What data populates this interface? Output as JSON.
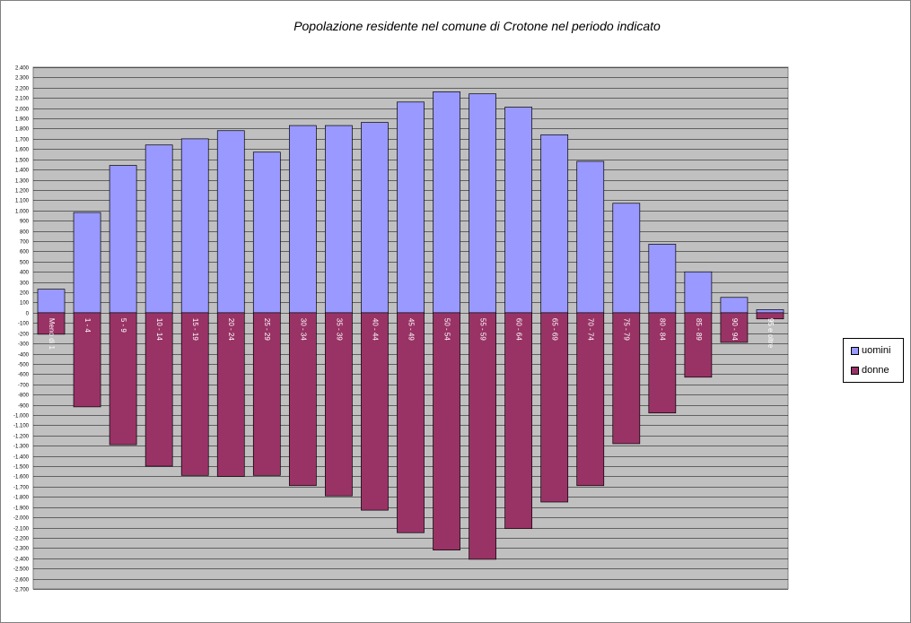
{
  "chart_data": {
    "type": "bar",
    "title": "Popolazione residente nel comune di Crotone nel periodo indicato",
    "categories": [
      "Meno di 1",
      "1 - 4",
      "5 - 9",
      "10 - 14",
      "15 - 19",
      "20 - 24",
      "25 - 29",
      "30 - 34",
      "35 - 39",
      "40 - 44",
      "45 - 49",
      "50 - 54",
      "55 - 59",
      "60 - 64",
      "65 - 69",
      "70 - 74",
      "75 - 79",
      "80 - 84",
      "85 - 89",
      "90 - 94",
      "95 e oltre"
    ],
    "series": [
      {
        "name": "uomini",
        "color": "#9999ff",
        "values": [
          230,
          980,
          1440,
          1640,
          1700,
          1780,
          1570,
          1830,
          1830,
          1860,
          2060,
          2160,
          2140,
          2010,
          1740,
          1480,
          1070,
          670,
          400,
          150,
          30
        ]
      },
      {
        "name": "donne",
        "color": "#993366",
        "values": [
          -210,
          -920,
          -1290,
          -1500,
          -1590,
          -1600,
          -1590,
          -1690,
          -1790,
          -1930,
          -2150,
          -2320,
          -2410,
          -2110,
          -1850,
          -1690,
          -1280,
          -980,
          -630,
          -290,
          -60
        ]
      }
    ],
    "ylim": [
      -2700,
      2400
    ],
    "ytick_step": 100,
    "xlabel": "",
    "ylabel": "",
    "grid": true,
    "plot_background": "#c0c0c0",
    "legend_position": "right"
  }
}
